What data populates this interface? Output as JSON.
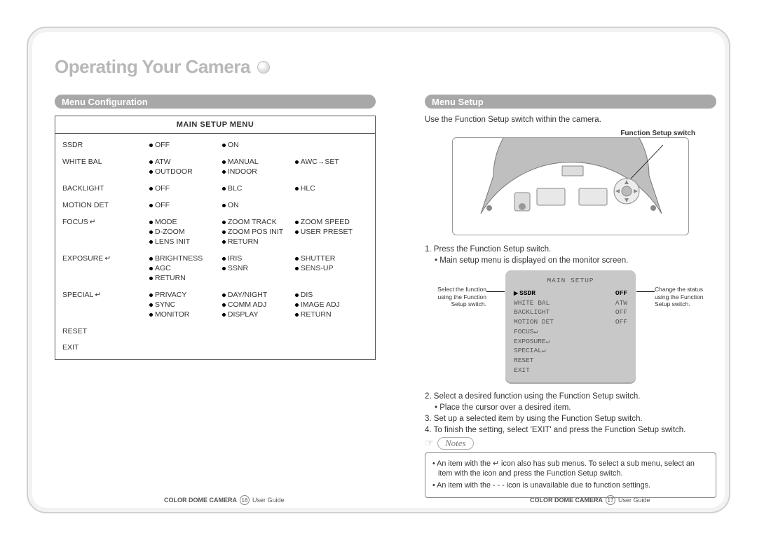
{
  "title": "Operating Your Camera",
  "left": {
    "section": "Menu Configuration",
    "table_header": "MAIN SETUP MENU",
    "rows": [
      {
        "label": "SSDR",
        "opts": [
          "OFF",
          "ON"
        ]
      },
      {
        "label": "WHITE BAL",
        "opts": [
          "ATW",
          "MANUAL",
          "AWC→SET",
          "OUTDOOR",
          "INDOOR"
        ]
      },
      {
        "label": "BACKLIGHT",
        "opts": [
          "OFF",
          "BLC",
          "HLC"
        ]
      },
      {
        "label": "MOTION DET",
        "opts": [
          "OFF",
          "ON"
        ]
      },
      {
        "label": "FOCUS↵",
        "opts": [
          "MODE",
          "ZOOM TRACK",
          "ZOOM SPEED",
          "D-ZOOM",
          "ZOOM POS INIT",
          "USER PRESET",
          "LENS INIT",
          "RETURN"
        ]
      },
      {
        "label": "EXPOSURE↵",
        "opts": [
          "BRIGHTNESS",
          "IRIS",
          "SHUTTER",
          "AGC",
          "SSNR",
          "SENS-UP",
          "RETURN"
        ]
      },
      {
        "label": "SPECIAL↵",
        "opts": [
          "PRIVACY",
          "DAY/NIGHT",
          "DIS",
          "SYNC",
          "COMM ADJ",
          "IMAGE ADJ",
          "MONITOR",
          "DISPLAY",
          "RETURN"
        ]
      },
      {
        "label": "RESET",
        "opts": []
      },
      {
        "label": "EXIT",
        "opts": []
      }
    ]
  },
  "right": {
    "section": "Menu Setup",
    "intro": "Use the Function Setup switch within the camera.",
    "switch_label": "Function Setup switch",
    "step1": "1. Press the Function Setup switch.",
    "step1a": "• Main setup menu is displayed on the monitor screen.",
    "side_left": "Select the function using the Function Setup switch.",
    "side_right": "Change the status using the Function Setup switch.",
    "osd": {
      "title": "MAIN SETUP",
      "rows": [
        {
          "l": "SSDR",
          "r": "OFF",
          "sel": true
        },
        {
          "l": "WHITE BAL",
          "r": "ATW"
        },
        {
          "l": "BACKLIGHT",
          "r": "OFF"
        },
        {
          "l": "MOTION DET",
          "r": "OFF"
        },
        {
          "l": "FOCUS↵",
          "r": ""
        },
        {
          "l": "EXPOSURE↵",
          "r": ""
        },
        {
          "l": "SPECIAL↵",
          "r": ""
        },
        {
          "l": "RESET",
          "r": ""
        },
        {
          "l": "EXIT",
          "r": ""
        }
      ]
    },
    "step2": "2. Select a desired function using the Function Setup switch.",
    "step2a": "• Place the cursor over a desired item.",
    "step3": "3. Set up a selected item by using the Function Setup switch.",
    "step4": "4. To finish the setting, select 'EXIT' and press the Function Setup switch.",
    "notes_label": "Notes",
    "notes": [
      "• An item with the ↵ icon also has sub menus. To select a sub menu, select an item with the icon and press the Function Setup switch.",
      "• An item with the - - - icon is unavailable due to function settings."
    ]
  },
  "footer": {
    "product": "COLOR DOME CAMERA",
    "guide": "User Guide",
    "pLeft": "16",
    "pRight": "17"
  }
}
